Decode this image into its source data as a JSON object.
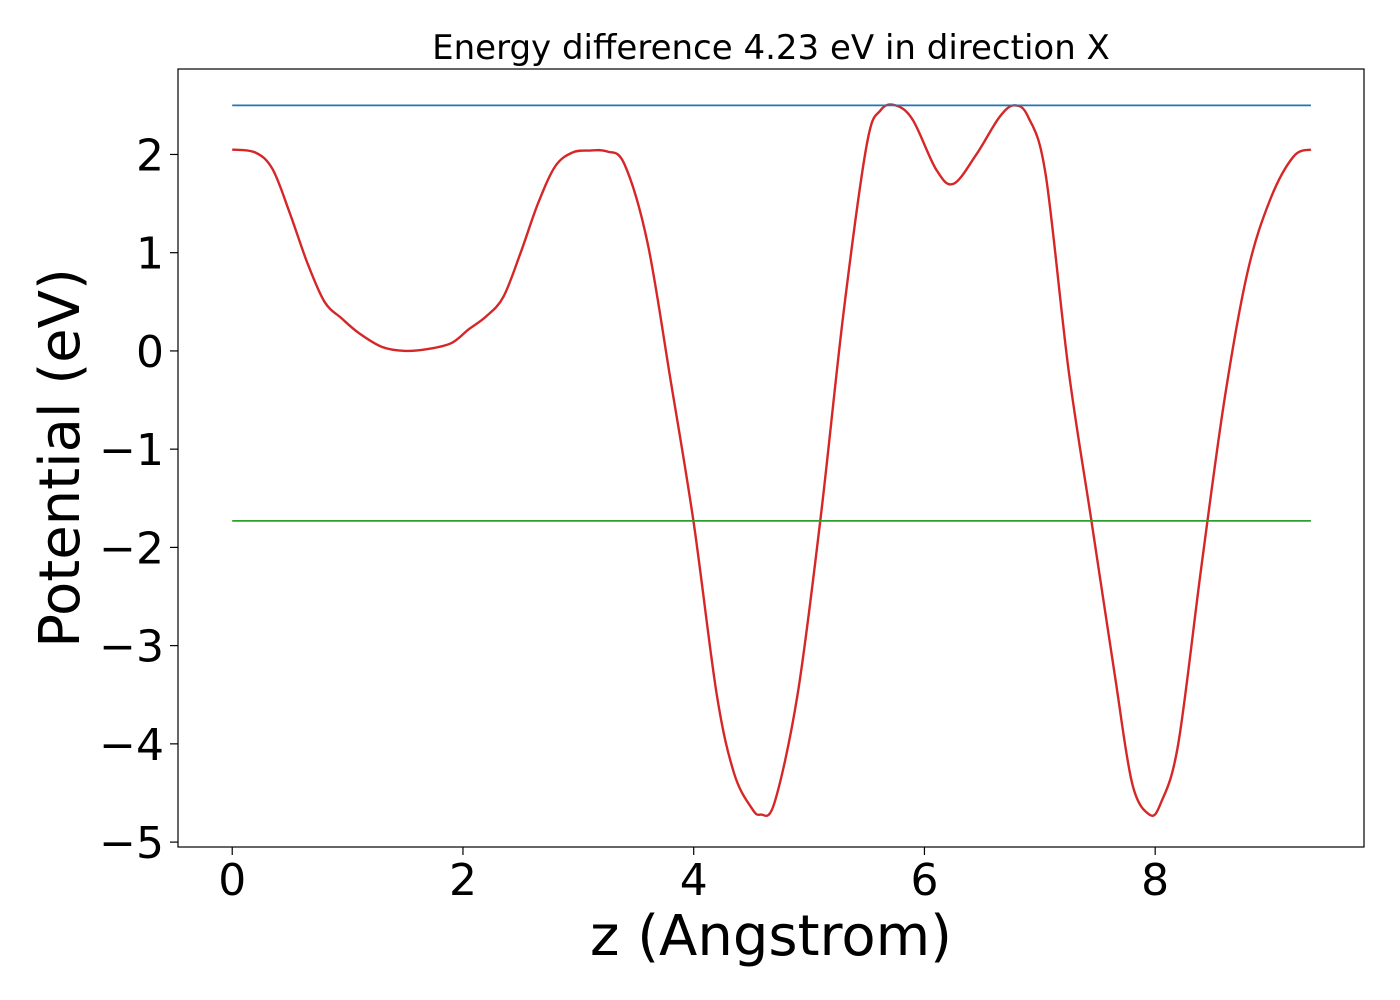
{
  "chart_data": {
    "type": "line",
    "title": "Energy difference 4.23 eV in direction X",
    "xlabel": "z (Angstrom)",
    "ylabel": "Potential (eV)",
    "xlim": [
      -0.47,
      9.81
    ],
    "ylim": [
      -5.05,
      2.87
    ],
    "xticks": [
      0,
      2,
      4,
      6,
      8
    ],
    "xtick_labels": [
      "0",
      "2",
      "4",
      "6",
      "8"
    ],
    "yticks": [
      2,
      1,
      0,
      -1,
      -2,
      -3,
      -4,
      -5
    ],
    "ytick_labels": [
      "2",
      "1",
      "0",
      "−1",
      "−2",
      "−3",
      "−4",
      "−5"
    ],
    "grid": false,
    "legend": false,
    "series": [
      {
        "color": "#d62728",
        "x": [
          0,
          0.2,
          0.35,
          0.5,
          0.65,
          0.8,
          0.95,
          1.1,
          1.3,
          1.5,
          1.7,
          1.9,
          2.05,
          2.2,
          2.35,
          2.5,
          2.65,
          2.8,
          2.95,
          3.1,
          3.25,
          3.4,
          3.6,
          3.8,
          4.0,
          4.2,
          4.35,
          4.5,
          4.58,
          4.7,
          4.9,
          5.1,
          5.3,
          5.5,
          5.62,
          5.75,
          5.9,
          6.1,
          6.25,
          6.45,
          6.65,
          6.78,
          6.9,
          7.05,
          7.25,
          7.45,
          7.65,
          7.8,
          7.95,
          8.05,
          8.2,
          8.4,
          8.6,
          8.8,
          9.0,
          9.2,
          9.35
        ],
        "y": [
          2.05,
          2.02,
          1.85,
          1.4,
          0.9,
          0.5,
          0.33,
          0.18,
          0.04,
          0.0,
          0.02,
          0.08,
          0.22,
          0.35,
          0.55,
          1.0,
          1.5,
          1.88,
          2.02,
          2.04,
          2.03,
          1.9,
          1.1,
          -0.3,
          -1.75,
          -3.5,
          -4.3,
          -4.65,
          -4.72,
          -4.6,
          -3.5,
          -1.7,
          0.4,
          2.1,
          2.45,
          2.5,
          2.35,
          1.85,
          1.7,
          2.0,
          2.38,
          2.5,
          2.38,
          1.8,
          -0.2,
          -1.75,
          -3.3,
          -4.4,
          -4.72,
          -4.6,
          -4.0,
          -2.2,
          -0.5,
          0.8,
          1.55,
          1.98,
          2.05
        ]
      },
      {
        "color": "#1f77b4",
        "x": [
          0,
          9.35
        ],
        "y": [
          2.5,
          2.5
        ]
      },
      {
        "color": "#2ca02c",
        "x": [
          0,
          9.35
        ],
        "y": [
          -1.73,
          -1.73
        ]
      }
    ]
  }
}
